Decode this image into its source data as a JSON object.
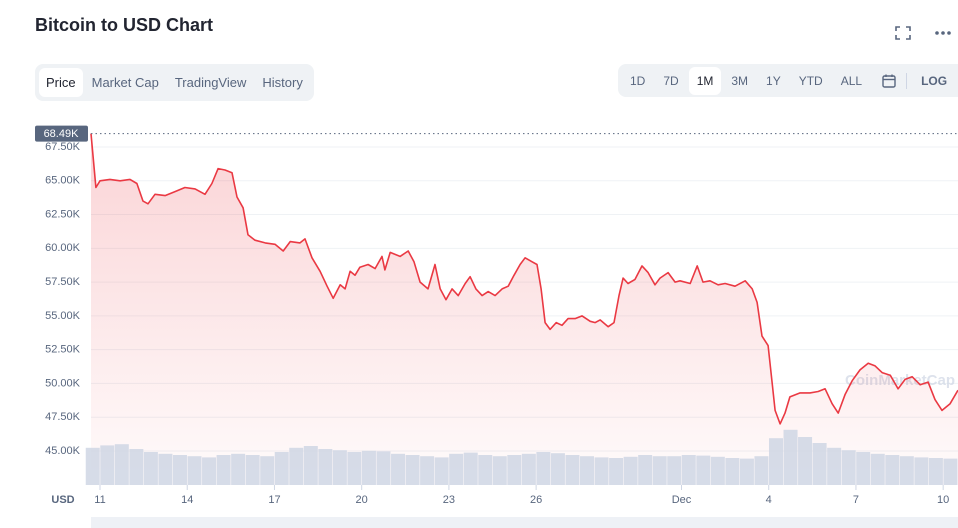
{
  "header": {
    "title": "Bitcoin to USD Chart",
    "tabs": [
      "Price",
      "Market Cap",
      "TradingView",
      "History"
    ],
    "active_tab": "Price",
    "ranges": [
      "1D",
      "7D",
      "1M",
      "3M",
      "1Y",
      "YTD",
      "ALL"
    ],
    "active_range": "1M",
    "log": "LOG"
  },
  "chart_data": {
    "type": "line",
    "color": "#ea3943",
    "currency_label": "USD",
    "watermark": "CoinMarketCap",
    "current_price": {
      "value": 68490,
      "label": "68.49K"
    },
    "xlim": [
      -0.31,
      29.51
    ],
    "xticks": [
      {
        "value": 0,
        "label": "11"
      },
      {
        "value": 3,
        "label": "14"
      },
      {
        "value": 6,
        "label": "17"
      },
      {
        "value": 9,
        "label": "20"
      },
      {
        "value": 12,
        "label": "23"
      },
      {
        "value": 15,
        "label": "26"
      },
      {
        "value": 20,
        "label": "Dec"
      },
      {
        "value": 23,
        "label": "4"
      },
      {
        "value": 26,
        "label": "7"
      },
      {
        "value": 29,
        "label": "10"
      }
    ],
    "ylim": [
      42480,
      69130
    ],
    "yticks": [
      {
        "value": 45000,
        "label": "45.00K"
      },
      {
        "value": 47500,
        "label": "47.50K"
      },
      {
        "value": 50000,
        "label": "50.00K"
      },
      {
        "value": 52500,
        "label": "52.50K"
      },
      {
        "value": 55000,
        "label": "55.00K"
      },
      {
        "value": 57500,
        "label": "57.50K"
      },
      {
        "value": 60000,
        "label": "60.00K"
      },
      {
        "value": 62500,
        "label": "62.50K"
      },
      {
        "value": 65000,
        "label": "65.00K"
      },
      {
        "value": 67500,
        "label": "67.50K"
      }
    ],
    "grid": true,
    "x": [
      -0.31,
      -0.14,
      0,
      0.34,
      0.69,
      1.03,
      1.27,
      1.48,
      1.65,
      1.89,
      2.24,
      2.58,
      2.92,
      3.27,
      3.61,
      3.85,
      4.06,
      4.3,
      4.54,
      4.71,
      4.92,
      5.09,
      5.33,
      5.68,
      6.02,
      6.3,
      6.54,
      6.88,
      7.05,
      7.29,
      7.57,
      7.81,
      8.02,
      8.26,
      8.43,
      8.6,
      8.77,
      8.94,
      9.22,
      9.46,
      9.7,
      9.8,
      9.98,
      10.32,
      10.6,
      10.8,
      11.01,
      11.28,
      11.52,
      11.7,
      11.9,
      12.11,
      12.32,
      12.56,
      12.73,
      12.93,
      13.14,
      13.35,
      13.59,
      13.83,
      14.04,
      14.24,
      14.45,
      14.62,
      14.86,
      15.03,
      15.17,
      15.31,
      15.48,
      15.69,
      15.89,
      16.1,
      16.34,
      16.58,
      16.86,
      17.03,
      17.2,
      17.48,
      17.68,
      17.85,
      17.99,
      18.16,
      18.4,
      18.64,
      18.85,
      19.09,
      19.26,
      19.54,
      19.78,
      19.95,
      20.3,
      20.54,
      20.74,
      20.98,
      21.26,
      21.5,
      21.84,
      22.19,
      22.43,
      22.6,
      22.77,
      22.98,
      23.12,
      23.22,
      23.39,
      23.56,
      23.73,
      24.08,
      24.42,
      24.7,
      24.94,
      25.18,
      25.39,
      25.63,
      25.87,
      26.14,
      26.42,
      26.66,
      26.9,
      27.18,
      27.45,
      27.69,
      27.93,
      28.21,
      28.48,
      28.72,
      28.96,
      29.24,
      29.51
    ],
    "values": [
      68490,
      64500,
      65000,
      65100,
      65000,
      65100,
      64800,
      63500,
      63300,
      64000,
      63900,
      64200,
      64500,
      64400,
      64000,
      64800,
      65900,
      65800,
      65600,
      63800,
      63000,
      61000,
      60600,
      60400,
      60300,
      59800,
      60500,
      60400,
      60700,
      59300,
      58300,
      57200,
      56300,
      57300,
      57000,
      58300,
      58000,
      58600,
      58800,
      58500,
      59400,
      58400,
      59700,
      59400,
      59800,
      59000,
      57500,
      57000,
      58800,
      57000,
      56200,
      57000,
      56500,
      57400,
      57900,
      57000,
      56500,
      56800,
      56500,
      57000,
      57200,
      58000,
      58800,
      59300,
      59000,
      58800,
      57000,
      54500,
      54000,
      54500,
      54300,
      54800,
      54800,
      55000,
      54600,
      54500,
      54700,
      54200,
      54500,
      56500,
      57800,
      57400,
      57700,
      58700,
      58200,
      57300,
      57800,
      58200,
      57500,
      57600,
      57400,
      58700,
      57500,
      57600,
      57300,
      57400,
      57200,
      57600,
      57000,
      56000,
      53500,
      52800,
      50000,
      48000,
      47000,
      47800,
      49000,
      49300,
      49300,
      49400,
      49600,
      48500,
      47800,
      49200,
      50200,
      51000,
      51500,
      51300,
      50800,
      50600,
      49600,
      50300,
      50500,
      49900,
      50100,
      48800,
      48000,
      48500,
      49500
    ],
    "volume": {
      "vlim": [
        0,
        100
      ],
      "x": [
        -0.25,
        0.25,
        0.75,
        1.25,
        1.75,
        2.25,
        2.75,
        3.25,
        3.75,
        4.25,
        4.75,
        5.25,
        5.75,
        6.25,
        6.75,
        7.25,
        7.75,
        8.25,
        8.75,
        9.25,
        9.75,
        10.25,
        10.75,
        11.25,
        11.75,
        12.25,
        12.75,
        13.25,
        13.75,
        14.25,
        14.75,
        15.25,
        15.75,
        16.25,
        16.75,
        17.25,
        17.75,
        18.25,
        18.75,
        19.25,
        19.75,
        20.25,
        20.75,
        21.25,
        21.75,
        22.25,
        22.75,
        23.25,
        23.75,
        24.25,
        24.75,
        25.25,
        25.75,
        26.25,
        26.75,
        27.25,
        27.75,
        28.25,
        28.75,
        29.25
      ],
      "values": [
        62,
        66,
        68,
        60,
        55,
        52,
        50,
        48,
        46,
        50,
        52,
        50,
        48,
        55,
        62,
        65,
        60,
        58,
        55,
        57,
        56,
        52,
        50,
        48,
        46,
        52,
        54,
        50,
        48,
        50,
        52,
        55,
        53,
        50,
        48,
        46,
        45,
        47,
        50,
        48,
        48,
        50,
        49,
        47,
        45,
        44,
        48,
        78,
        92,
        80,
        70,
        62,
        58,
        55,
        52,
        50,
        48,
        46,
        45,
        44
      ]
    }
  }
}
